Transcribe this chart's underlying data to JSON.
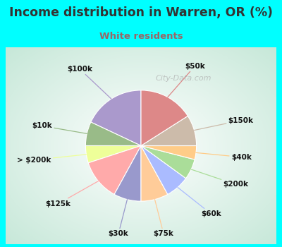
{
  "title": "Income distribution in Warren, OR (%)",
  "subtitle": "White residents",
  "title_color": "#333333",
  "subtitle_color": "#996666",
  "bg_cyan": "#00ffff",
  "bg_chart_center": "#ffffff",
  "bg_chart_edge": "#c8e8d8",
  "labels": [
    "$100k",
    "$10k",
    "> $200k",
    "$125k",
    "$30k",
    "$75k",
    "$60k",
    "$200k",
    "$40k",
    "$150k",
    "$50k"
  ],
  "values": [
    18,
    7,
    5,
    12,
    8,
    8,
    7,
    6,
    4,
    9,
    16
  ],
  "colors": [
    "#aa99cc",
    "#99bb88",
    "#eeff99",
    "#ffaaaa",
    "#9999cc",
    "#ffcc99",
    "#aabbff",
    "#aadd99",
    "#ffcc88",
    "#ccbbaa",
    "#dd8888"
  ],
  "startangle": 90,
  "watermark": "City-Data.com"
}
